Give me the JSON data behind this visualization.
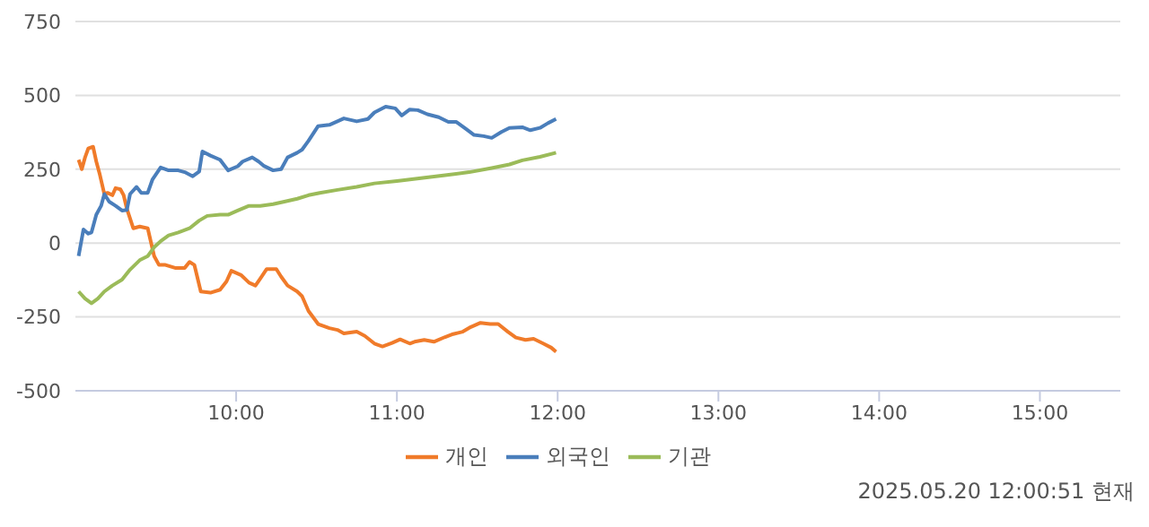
{
  "chart_data": {
    "type": "line",
    "xlim": [
      9,
      15.5
    ],
    "xticks": [
      {
        "value": 10,
        "label": "10:00"
      },
      {
        "value": 11,
        "label": "11:00"
      },
      {
        "value": 12,
        "label": "12:00"
      },
      {
        "value": 13,
        "label": "13:00"
      },
      {
        "value": 14,
        "label": "14:00"
      },
      {
        "value": 15,
        "label": "15:00"
      }
    ],
    "ylim": [
      -500,
      750
    ],
    "yticks": [
      -500,
      -250,
      0,
      250,
      500,
      750
    ],
    "grid": "y",
    "legend": "bottom",
    "marker": "none",
    "line_style": "solid",
    "annotations": [
      "2025.05.20 12:00:51 현재"
    ],
    "series": [
      {
        "name": "개인",
        "color": "#f07b2a",
        "x": [
          9.02,
          9.04,
          9.06,
          9.08,
          9.11,
          9.13,
          9.15,
          9.18,
          9.2,
          9.23,
          9.25,
          9.28,
          9.3,
          9.32,
          9.36,
          9.4,
          9.45,
          9.49,
          9.52,
          9.56,
          9.62,
          9.68,
          9.71,
          9.74,
          9.78,
          9.84,
          9.9,
          9.94,
          9.97,
          10.03,
          10.08,
          10.12,
          10.15,
          10.19,
          10.25,
          10.28,
          10.32,
          10.38,
          10.41,
          10.45,
          10.51,
          10.58,
          10.63,
          10.67,
          10.75,
          10.8,
          10.86,
          10.91,
          10.97,
          11.02,
          11.08,
          11.11,
          11.17,
          11.23,
          11.3,
          11.35,
          11.41,
          11.46,
          11.52,
          11.58,
          11.63,
          11.69,
          11.74,
          11.8,
          11.85,
          11.91,
          11.96,
          11.99
        ],
        "values": [
          282,
          250,
          290,
          320,
          326,
          276,
          236,
          166,
          170,
          162,
          186,
          182,
          162,
          116,
          50,
          56,
          50,
          -44,
          -74,
          -74,
          -84,
          -84,
          -64,
          -74,
          -164,
          -168,
          -158,
          -130,
          -94,
          -108,
          -134,
          -144,
          -120,
          -88,
          -88,
          -114,
          -144,
          -164,
          -180,
          -230,
          -274,
          -288,
          -294,
          -306,
          -300,
          -314,
          -340,
          -350,
          -338,
          -326,
          -340,
          -334,
          -328,
          -334,
          -318,
          -308,
          -300,
          -284,
          -270,
          -274,
          -274,
          -300,
          -320,
          -328,
          -324,
          -340,
          -354,
          -368
        ]
      },
      {
        "name": "외국인",
        "color": "#4a7ebb",
        "x": [
          9.02,
          9.05,
          9.08,
          9.1,
          9.13,
          9.16,
          9.18,
          9.21,
          9.25,
          9.29,
          9.32,
          9.34,
          9.38,
          9.41,
          9.45,
          9.48,
          9.53,
          9.58,
          9.64,
          9.68,
          9.73,
          9.77,
          9.79,
          9.84,
          9.9,
          9.95,
          10.01,
          10.04,
          10.1,
          10.14,
          10.17,
          10.23,
          10.28,
          10.32,
          10.38,
          10.41,
          10.45,
          10.51,
          10.58,
          10.63,
          10.67,
          10.75,
          10.82,
          10.86,
          10.93,
          10.99,
          11.03,
          11.08,
          11.13,
          11.19,
          11.26,
          11.32,
          11.37,
          11.43,
          11.48,
          11.54,
          11.59,
          11.65,
          11.7,
          11.78,
          11.83,
          11.89,
          11.94,
          11.99
        ],
        "values": [
          -44,
          46,
          32,
          36,
          96,
          126,
          166,
          140,
          126,
          110,
          112,
          166,
          190,
          170,
          170,
          216,
          256,
          246,
          246,
          240,
          226,
          242,
          310,
          296,
          282,
          246,
          260,
          276,
          290,
          276,
          262,
          246,
          250,
          290,
          306,
          316,
          346,
          396,
          400,
          412,
          422,
          412,
          420,
          442,
          462,
          456,
          432,
          452,
          450,
          436,
          426,
          410,
          410,
          386,
          366,
          362,
          356,
          376,
          390,
          392,
          382,
          390,
          406,
          420
        ]
      },
      {
        "name": "기관",
        "color": "#9bbb59",
        "x": [
          9.02,
          9.06,
          9.1,
          9.14,
          9.18,
          9.23,
          9.29,
          9.34,
          9.4,
          9.45,
          9.49,
          9.53,
          9.58,
          9.64,
          9.71,
          9.77,
          9.82,
          9.9,
          9.95,
          10.01,
          10.08,
          10.15,
          10.23,
          10.3,
          10.38,
          10.45,
          10.52,
          10.63,
          10.75,
          10.86,
          11,
          11.15,
          11.3,
          11.45,
          11.59,
          11.7,
          11.78,
          11.89,
          11.99
        ],
        "values": [
          -164,
          -188,
          -204,
          -188,
          -164,
          -144,
          -124,
          -90,
          -58,
          -44,
          -14,
          6,
          26,
          36,
          50,
          76,
          92,
          96,
          96,
          110,
          126,
          126,
          132,
          140,
          150,
          162,
          170,
          180,
          190,
          202,
          210,
          220,
          230,
          240,
          254,
          266,
          280,
          292,
          306
        ]
      }
    ]
  }
}
